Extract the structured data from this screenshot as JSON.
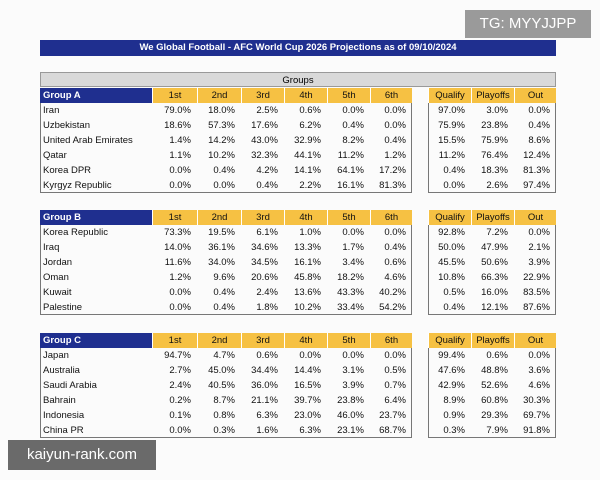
{
  "title": "We Global Football - AFC World Cup 2026 Projections as of 09/10/2024",
  "section_header": "Groups",
  "watermarks": {
    "top": "TG: MYYJJPP",
    "bottom": "kaiyun-rank.com"
  },
  "groups": [
    {
      "name": "Group A",
      "columns": [
        "1st",
        "2nd",
        "3rd",
        "4th",
        "5th",
        "6th",
        "Qualify",
        "Playoffs",
        "Out"
      ],
      "rows": [
        {
          "team": "Iran",
          "values": [
            "79.0%",
            "18.0%",
            "2.5%",
            "0.6%",
            "0.0%",
            "0.0%",
            "97.0%",
            "3.0%",
            "0.0%"
          ]
        },
        {
          "team": "Uzbekistan",
          "values": [
            "18.6%",
            "57.3%",
            "17.6%",
            "6.2%",
            "0.4%",
            "0.0%",
            "75.9%",
            "23.8%",
            "0.4%"
          ]
        },
        {
          "team": "United Arab Emirates",
          "values": [
            "1.4%",
            "14.2%",
            "43.0%",
            "32.9%",
            "8.2%",
            "0.4%",
            "15.5%",
            "75.9%",
            "8.6%"
          ]
        },
        {
          "team": "Qatar",
          "values": [
            "1.1%",
            "10.2%",
            "32.3%",
            "44.1%",
            "11.2%",
            "1.2%",
            "11.2%",
            "76.4%",
            "12.4%"
          ]
        },
        {
          "team": "Korea DPR",
          "values": [
            "0.0%",
            "0.4%",
            "4.2%",
            "14.1%",
            "64.1%",
            "17.2%",
            "0.4%",
            "18.3%",
            "81.3%"
          ]
        },
        {
          "team": "Kyrgyz Republic",
          "values": [
            "0.0%",
            "0.0%",
            "0.4%",
            "2.2%",
            "16.1%",
            "81.3%",
            "0.0%",
            "2.6%",
            "97.4%"
          ]
        }
      ]
    },
    {
      "name": "Group B",
      "columns": [
        "1st",
        "2nd",
        "3rd",
        "4th",
        "5th",
        "6th",
        "Qualify",
        "Playoffs",
        "Out"
      ],
      "rows": [
        {
          "team": "Korea Republic",
          "values": [
            "73.3%",
            "19.5%",
            "6.1%",
            "1.0%",
            "0.0%",
            "0.0%",
            "92.8%",
            "7.2%",
            "0.0%"
          ]
        },
        {
          "team": "Iraq",
          "values": [
            "14.0%",
            "36.1%",
            "34.6%",
            "13.3%",
            "1.7%",
            "0.4%",
            "50.0%",
            "47.9%",
            "2.1%"
          ]
        },
        {
          "team": "Jordan",
          "values": [
            "11.6%",
            "34.0%",
            "34.5%",
            "16.1%",
            "3.4%",
            "0.6%",
            "45.5%",
            "50.6%",
            "3.9%"
          ]
        },
        {
          "team": "Oman",
          "values": [
            "1.2%",
            "9.6%",
            "20.6%",
            "45.8%",
            "18.2%",
            "4.6%",
            "10.8%",
            "66.3%",
            "22.9%"
          ]
        },
        {
          "team": "Kuwait",
          "values": [
            "0.0%",
            "0.4%",
            "2.4%",
            "13.6%",
            "43.3%",
            "40.2%",
            "0.5%",
            "16.0%",
            "83.5%"
          ]
        },
        {
          "team": "Palestine",
          "values": [
            "0.0%",
            "0.4%",
            "1.8%",
            "10.2%",
            "33.4%",
            "54.2%",
            "0.4%",
            "12.1%",
            "87.6%"
          ]
        }
      ]
    },
    {
      "name": "Group C",
      "columns": [
        "1st",
        "2nd",
        "3rd",
        "4th",
        "5th",
        "6th",
        "Qualify",
        "Playoffs",
        "Out"
      ],
      "rows": [
        {
          "team": "Japan",
          "values": [
            "94.7%",
            "4.7%",
            "0.6%",
            "0.0%",
            "0.0%",
            "0.0%",
            "99.4%",
            "0.6%",
            "0.0%"
          ]
        },
        {
          "team": "Australia",
          "values": [
            "2.7%",
            "45.0%",
            "34.4%",
            "14.4%",
            "3.1%",
            "0.5%",
            "47.6%",
            "48.8%",
            "3.6%"
          ]
        },
        {
          "team": "Saudi Arabia",
          "values": [
            "2.4%",
            "40.5%",
            "36.0%",
            "16.5%",
            "3.9%",
            "0.7%",
            "42.9%",
            "52.6%",
            "4.6%"
          ]
        },
        {
          "team": "Bahrain",
          "values": [
            "0.2%",
            "8.7%",
            "21.1%",
            "39.7%",
            "23.8%",
            "6.4%",
            "8.9%",
            "60.8%",
            "30.3%"
          ]
        },
        {
          "team": "Indonesia",
          "values": [
            "0.1%",
            "0.8%",
            "6.3%",
            "23.0%",
            "46.0%",
            "23.7%",
            "0.9%",
            "29.3%",
            "69.7%"
          ]
        },
        {
          "team": "China PR",
          "values": [
            "0.0%",
            "0.3%",
            "1.6%",
            "6.3%",
            "23.1%",
            "68.7%",
            "0.3%",
            "7.9%",
            "91.8%"
          ]
        }
      ]
    }
  ]
}
